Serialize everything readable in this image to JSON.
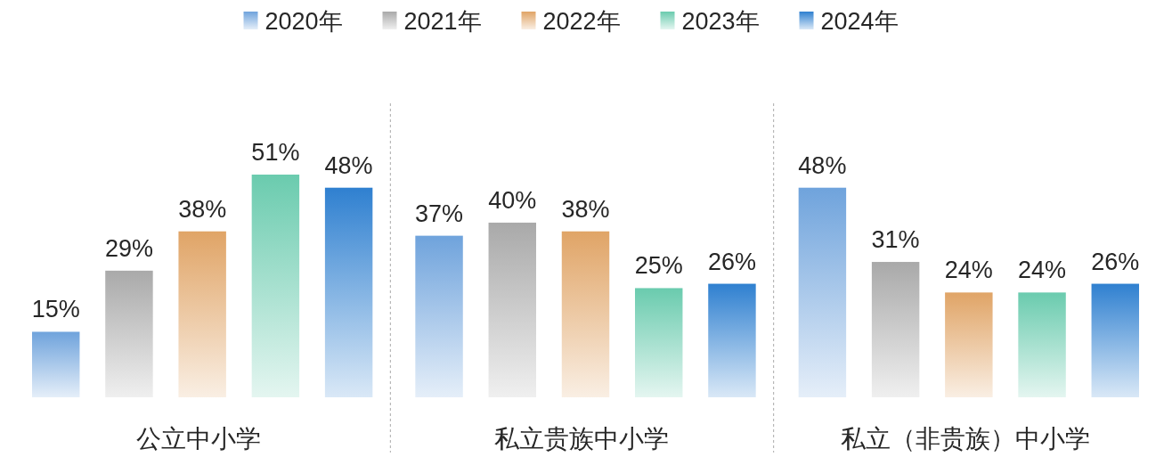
{
  "chart_data": {
    "type": "bar",
    "categories": [
      "公立中小学",
      "私立贵族中小学",
      "私立（非贵族）中小学"
    ],
    "series": [
      {
        "name": "2020年",
        "color": "#6fa3dc",
        "values": [
          15,
          37,
          48
        ],
        "value_labels": [
          "15%",
          "37%",
          "48%"
        ]
      },
      {
        "name": "2021年",
        "color": "#a9a9a9",
        "values": [
          29,
          40,
          31
        ],
        "value_labels": [
          "29%",
          "40%",
          "31%"
        ]
      },
      {
        "name": "2022年",
        "color": "#e0a466",
        "values": [
          38,
          38,
          24
        ],
        "value_labels": [
          "38%",
          "38%",
          "24%"
        ]
      },
      {
        "name": "2023年",
        "color": "#6acbae",
        "values": [
          51,
          25,
          24
        ],
        "value_labels": [
          "51%",
          "25%",
          "24%"
        ]
      },
      {
        "name": "2024年",
        "color": "#2f80d0",
        "values": [
          48,
          26,
          26
        ],
        "value_labels": [
          "48%",
          "26%",
          "26%"
        ]
      }
    ],
    "legend": "top",
    "grid": false
  }
}
